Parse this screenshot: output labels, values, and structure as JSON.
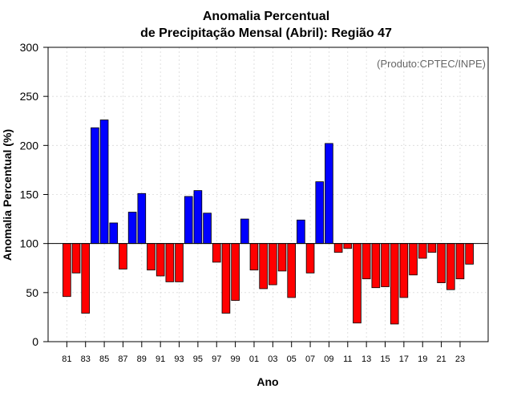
{
  "chart_data": {
    "type": "bar",
    "title_line1": "Anomalia Percentual",
    "title_line2": "de Precipitação Mensal (Abril): Região 47",
    "xlabel": "Ano",
    "ylabel": "Anomalia Percentual (%)",
    "credit": "(Produto:CPTEC/INPE)",
    "ylim": [
      0,
      300
    ],
    "yticks": [
      0,
      50,
      100,
      150,
      200,
      250,
      300
    ],
    "baseline": 100,
    "colors": {
      "above": "#0000ff",
      "below": "#ff0000",
      "outline": "#000000"
    },
    "categories": [
      "81",
      "82",
      "83",
      "84",
      "85",
      "86",
      "87",
      "88",
      "89",
      "90",
      "91",
      "92",
      "93",
      "94",
      "95",
      "96",
      "97",
      "98",
      "99",
      "00",
      "01",
      "02",
      "03",
      "04",
      "05",
      "06",
      "07",
      "08",
      "09",
      "10",
      "11",
      "12",
      "13",
      "14",
      "15",
      "16",
      "17",
      "18",
      "19",
      "20",
      "21",
      "22",
      "23",
      "24"
    ],
    "values": [
      46,
      70,
      29,
      218,
      226,
      121,
      74,
      132,
      151,
      73,
      67,
      61,
      61,
      148,
      154,
      131,
      81,
      29,
      42,
      125,
      73,
      54,
      58,
      72,
      45,
      124,
      70,
      163,
      202,
      91,
      95,
      19,
      64,
      55,
      56,
      18,
      45,
      68,
      85,
      91,
      60,
      53,
      64,
      79
    ],
    "xtick_labels": [
      "81",
      "83",
      "85",
      "87",
      "89",
      "91",
      "93",
      "95",
      "97",
      "99",
      "01",
      "03",
      "05",
      "07",
      "09",
      "11",
      "13",
      "15",
      "17",
      "19",
      "21",
      "23"
    ]
  }
}
